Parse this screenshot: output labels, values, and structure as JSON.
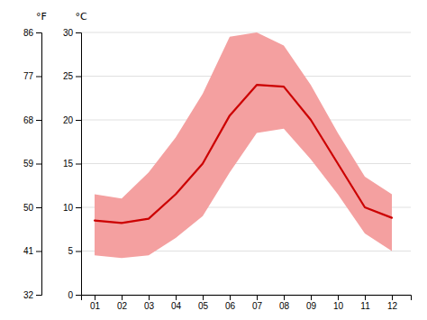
{
  "chart_data": {
    "type": "line",
    "ylabel": "°C",
    "y2label": "°F",
    "x": [
      1,
      2,
      3,
      4,
      5,
      6,
      7,
      8,
      9,
      10,
      11,
      12
    ],
    "xlim": [
      0.5,
      12.7
    ],
    "xticks": [
      {
        "value": 1,
        "label": "01"
      },
      {
        "value": 2,
        "label": "02"
      },
      {
        "value": 3,
        "label": "03"
      },
      {
        "value": 4,
        "label": "04"
      },
      {
        "value": 5,
        "label": "05"
      },
      {
        "value": 6,
        "label": "06"
      },
      {
        "value": 7,
        "label": "07"
      },
      {
        "value": 8,
        "label": "08"
      },
      {
        "value": 9,
        "label": "09"
      },
      {
        "value": 10,
        "label": "10"
      },
      {
        "value": 11,
        "label": "11"
      },
      {
        "value": 12,
        "label": "12"
      }
    ],
    "ylim": [
      0,
      30
    ],
    "yticks": [
      0,
      5,
      10,
      15,
      20,
      25,
      30
    ],
    "y2lim": [
      32,
      86
    ],
    "y2ticks": [
      32,
      41,
      50,
      59,
      68,
      77,
      86
    ],
    "grid": true,
    "series": [
      {
        "type": "band",
        "color": "#f4a0a0",
        "low": [
          4.5,
          4.2,
          4.5,
          6.5,
          9.0,
          14.0,
          18.5,
          19.0,
          15.5,
          11.5,
          7.0,
          5.0
        ],
        "high": [
          11.5,
          11.0,
          14.0,
          18.0,
          23.0,
          29.5,
          30.0,
          28.5,
          24.0,
          18.5,
          13.5,
          11.5
        ]
      },
      {
        "type": "line",
        "color": "#cc0000",
        "values": [
          8.5,
          8.2,
          8.7,
          11.5,
          15.0,
          20.5,
          24.0,
          23.8,
          20.0,
          15.0,
          10.0,
          8.8
        ]
      }
    ]
  }
}
